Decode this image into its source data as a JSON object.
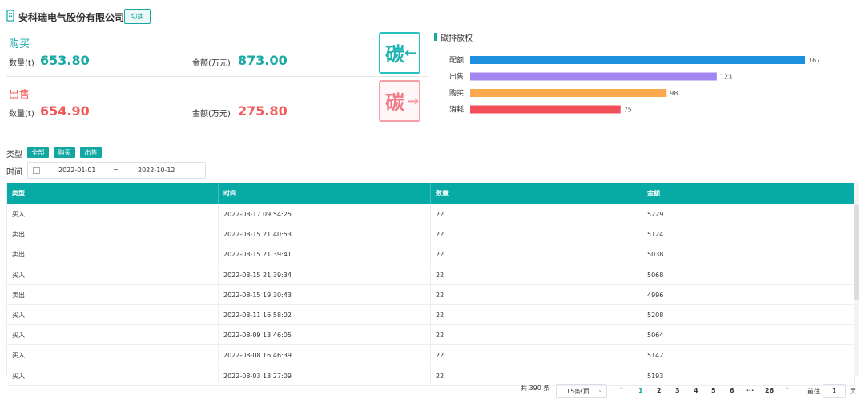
{
  "header": {
    "company": "安科瑞电气股份有限公司",
    "switch_label": "切换"
  },
  "buy": {
    "label": "购买",
    "qty_label": "数量(t)",
    "qty": "653.80",
    "amt_label": "金额(万元)",
    "amt": "873.00",
    "icon_char": "碳",
    "icon_arrow": "←"
  },
  "sell": {
    "label": "出售",
    "qty_label": "数量(t)",
    "qty": "654.90",
    "amt_label": "金额(万元)",
    "amt": "275.80",
    "icon_char": "碳",
    "icon_arrow": "→"
  },
  "chart_title": "碳排放权",
  "chart_data": {
    "type": "bar",
    "orientation": "horizontal",
    "title": "碳排放权",
    "categories": [
      "配额",
      "出售",
      "购买",
      "消耗"
    ],
    "values": [
      167,
      123,
      98,
      75
    ],
    "colors": [
      "#1e90e0",
      "#a385f2",
      "#fca84f",
      "#f25058"
    ],
    "xlim": [
      0,
      167
    ],
    "grid": false
  },
  "filters": {
    "type_label": "类型",
    "type_chips": [
      "全部",
      "购买",
      "出售"
    ],
    "time_label": "时间",
    "date_start": "2022-01-01",
    "date_sep": "~",
    "date_end": "2022-10-12"
  },
  "table": {
    "headers": [
      "类型",
      "时间",
      "数量",
      "金额"
    ],
    "rows": [
      [
        "买入",
        "2022-08-17 09:54:25",
        "22",
        "5229"
      ],
      [
        "卖出",
        "2022-08-15 21:40:53",
        "22",
        "5124"
      ],
      [
        "卖出",
        "2022-08-15 21:39:41",
        "22",
        "5038"
      ],
      [
        "买入",
        "2022-08-15 21:39:34",
        "22",
        "5068"
      ],
      [
        "卖出",
        "2022-08-15 19:30:43",
        "22",
        "4996"
      ],
      [
        "买入",
        "2022-08-11 16:58:02",
        "22",
        "5208"
      ],
      [
        "买入",
        "2022-08-09 13:46:05",
        "22",
        "5064"
      ],
      [
        "买入",
        "2022-08-08 16:46:39",
        "22",
        "5142"
      ],
      [
        "买入",
        "2022-08-03 13:27:09",
        "22",
        "5193"
      ]
    ]
  },
  "pagination": {
    "total": "共 390 条",
    "page_size": "15条/页",
    "prev": "‹",
    "pages": [
      "1",
      "2",
      "3",
      "4",
      "5",
      "6",
      "···",
      "26"
    ],
    "next": "›",
    "goto_label": "前往",
    "goto_value": "1",
    "goto_suffix": "页"
  }
}
